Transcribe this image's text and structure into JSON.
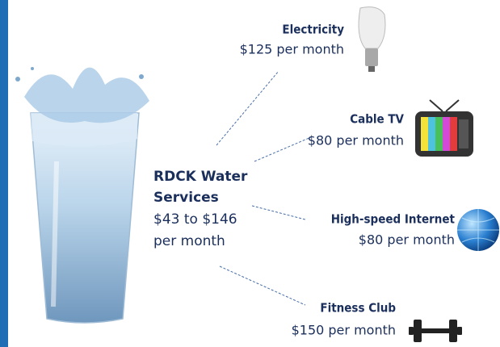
{
  "center": {
    "title_line1": "RDCK Water",
    "title_line2": "Services",
    "price_line1": "$43 to $146",
    "price_line2": "per month"
  },
  "items": [
    {
      "label": "Electricity",
      "price": "$125 per month"
    },
    {
      "label": "Cable TV",
      "price": "$80 per month"
    },
    {
      "label": "High-speed Internet",
      "price": "$80 per month"
    },
    {
      "label": "Fitness Club",
      "price": "$150 per month"
    }
  ]
}
